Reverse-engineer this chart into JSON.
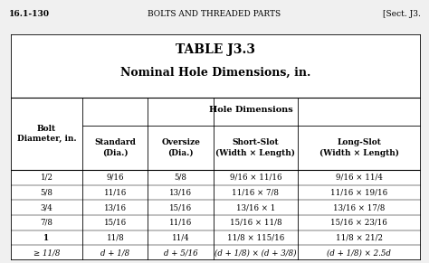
{
  "page_header_left": "16.1-130",
  "page_header_center": "BOLTS AND THREADED PARTS",
  "page_header_right": "[Sect. J3.",
  "title_line1": "TABLE J3.3",
  "title_line2": "Nominal Hole Dimensions, in.",
  "subheader": "Hole Dimensions",
  "col_headers": [
    "Bolt\nDiameter, in.",
    "Standard\n(Dia.)",
    "Oversize\n(Dia.)",
    "Short-Slot\n(Width × Length)",
    "Long-Slot\n(Width × Length)"
  ],
  "rows": [
    [
      "1/2",
      "9/16",
      "5/8",
      "9/16 × 11/16",
      "9/16 × 11/4"
    ],
    [
      "5/8",
      "11/16",
      "13/16",
      "11/16 × 7/8",
      "11/16 × 19/16"
    ],
    [
      "3/4",
      "13/16",
      "15/16",
      "13/16 × 1",
      "13/16 × 17/8"
    ],
    [
      "7/8",
      "15/16",
      "11/16",
      "15/16 × 11/8",
      "15/16 × 23/16"
    ],
    [
      "1",
      "11/8",
      "11/4",
      "11/8 × 115/16",
      "11/8 × 21/2"
    ],
    [
      "≥ 11/8",
      "d + 1/8",
      "d + 5/16",
      "(d + 1/8) × (d + 3/8)",
      "(d + 1/8) × 2.5d"
    ]
  ],
  "row4_bold_col0": true,
  "last_row_italic": true,
  "bg_color": "#f0f0f0",
  "table_bg": "#ffffff",
  "border_color": "#000000"
}
